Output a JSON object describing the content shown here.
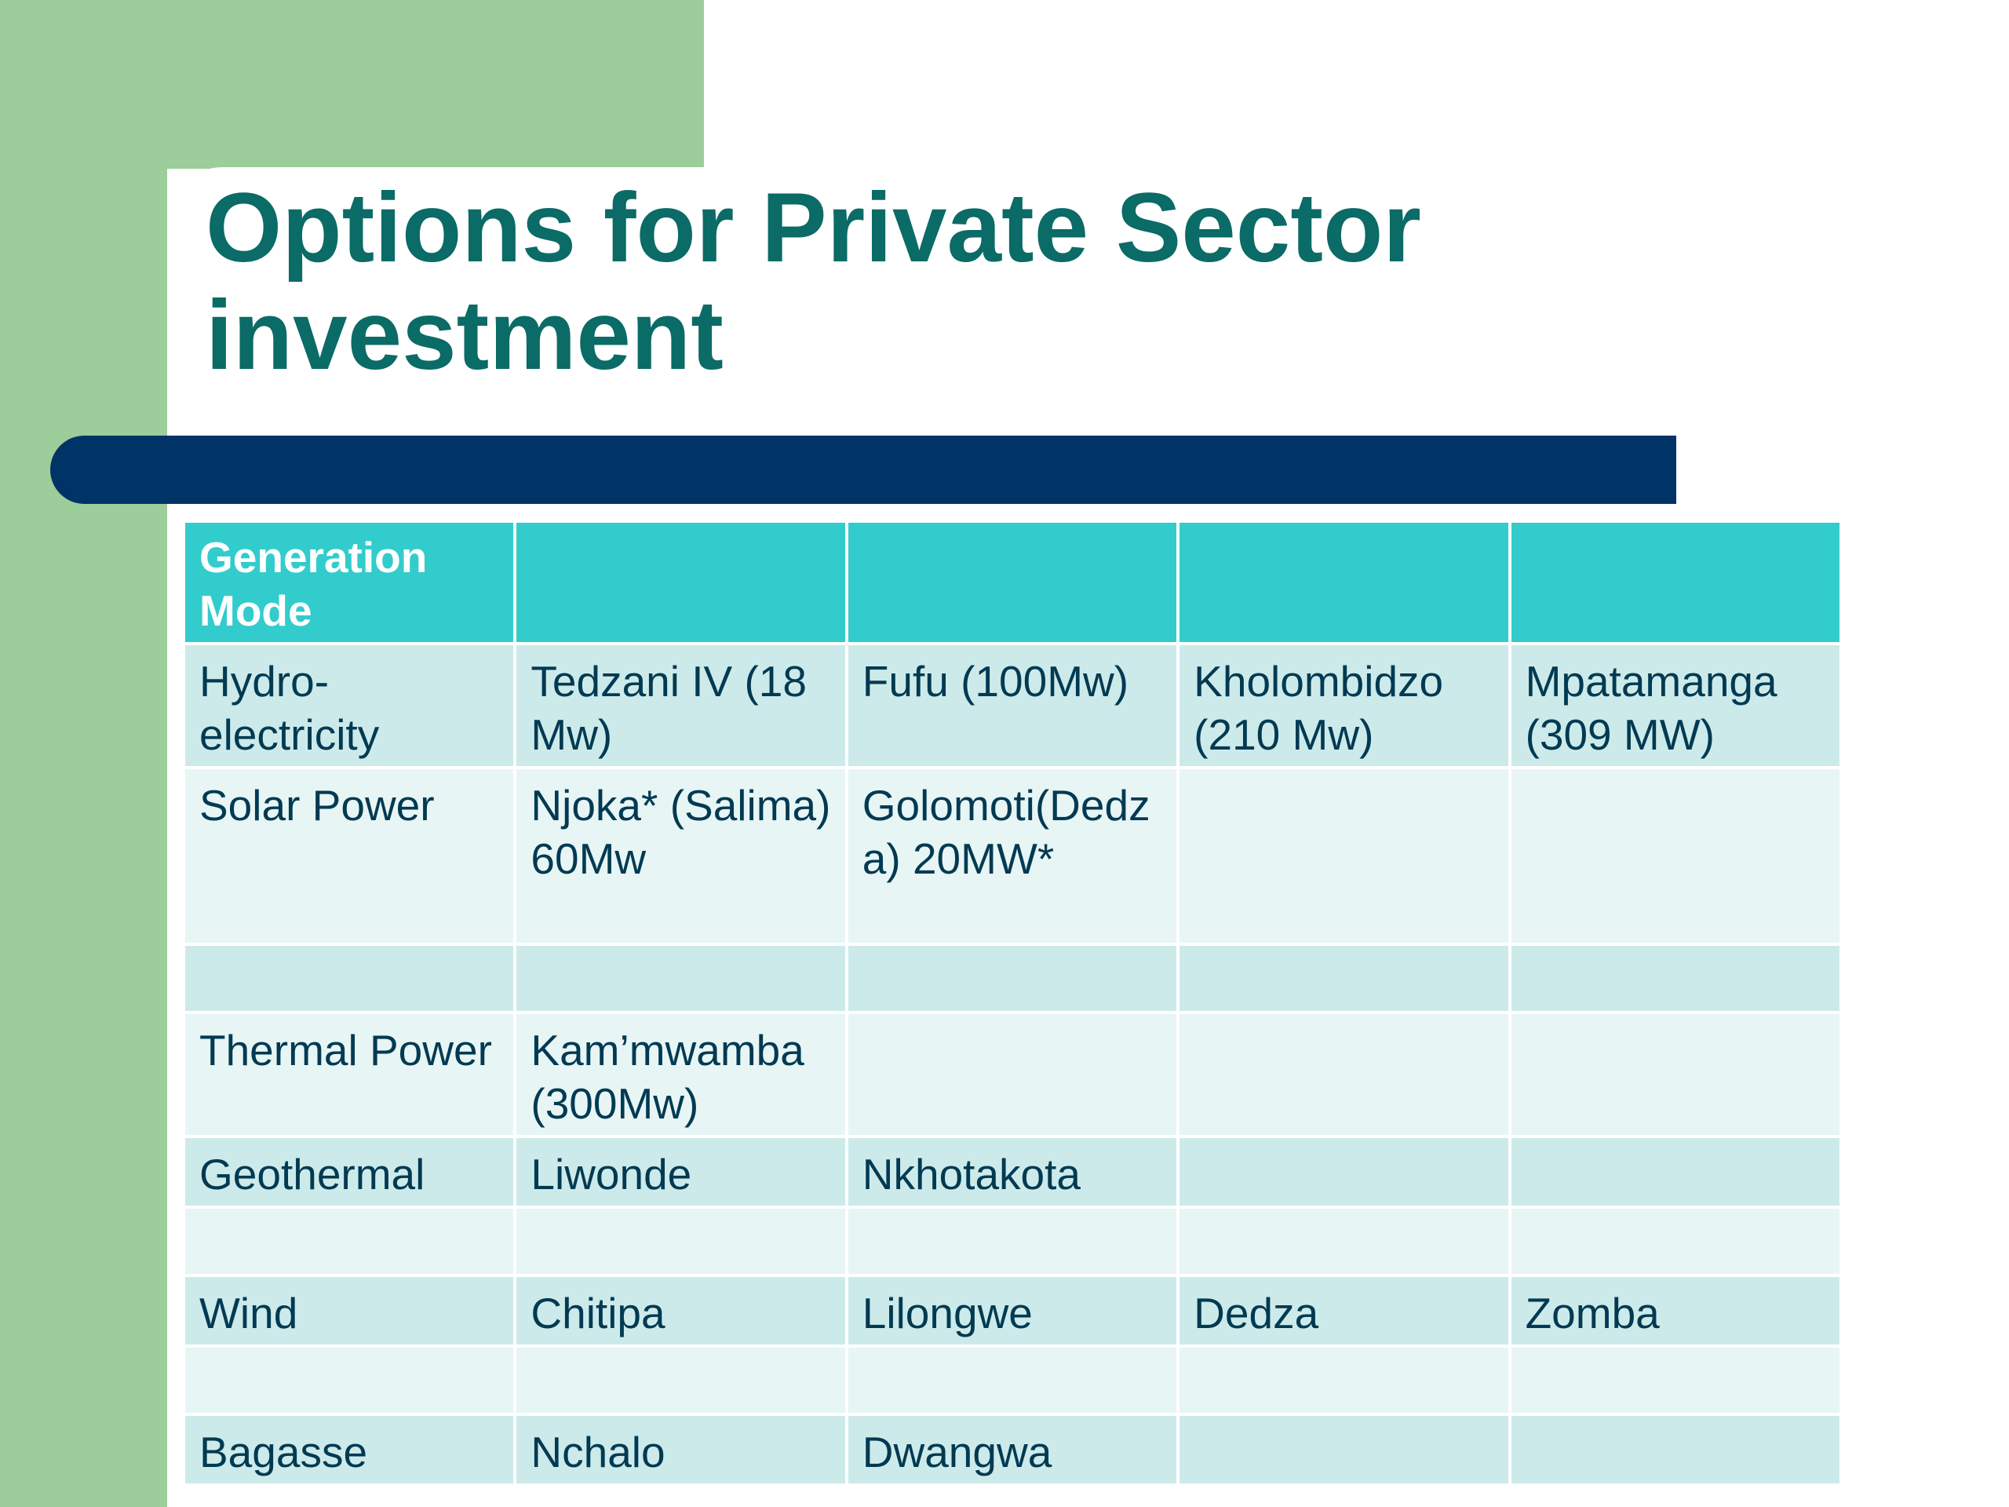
{
  "slide": {
    "title": "Options for Private Sector investment"
  },
  "table": {
    "header": [
      "Generation Mode",
      "",
      "",
      "",
      ""
    ],
    "rows": [
      [
        "Hydro-electricity",
        "Tedzani IV (18 Mw)",
        "Fufu (100Mw)",
        "Kholombidzo (210 Mw)",
        "Mpatamanga (309 MW)"
      ],
      [
        "Solar Power",
        "Njoka* (Salima) 60Mw",
        "Golomoti(Dedza) 20MW*",
        "",
        ""
      ],
      [
        "",
        "",
        "",
        "",
        ""
      ],
      [
        "Thermal Power",
        "Kam’mwamba (300Mw)",
        "",
        "",
        ""
      ],
      [
        "Geothermal",
        "Liwonde",
        "Nkhotakota",
        "",
        ""
      ],
      [
        "",
        "",
        "",
        "",
        ""
      ],
      [
        "Wind",
        "Chitipa",
        "Lilongwe",
        "Dedza",
        "Zomba"
      ],
      [
        "",
        "",
        "",
        "",
        ""
      ],
      [
        "Bagasse",
        "Nchalo",
        "Dwangwa",
        "",
        ""
      ]
    ]
  },
  "colors": {
    "title": "#0b6b66",
    "accent_green": "#9ccd9a",
    "bar_navy": "#003366",
    "header_teal": "#33cccc",
    "row_dark": "#cdeaea",
    "row_light": "#e8f5f5",
    "cell_text": "#003a52"
  }
}
